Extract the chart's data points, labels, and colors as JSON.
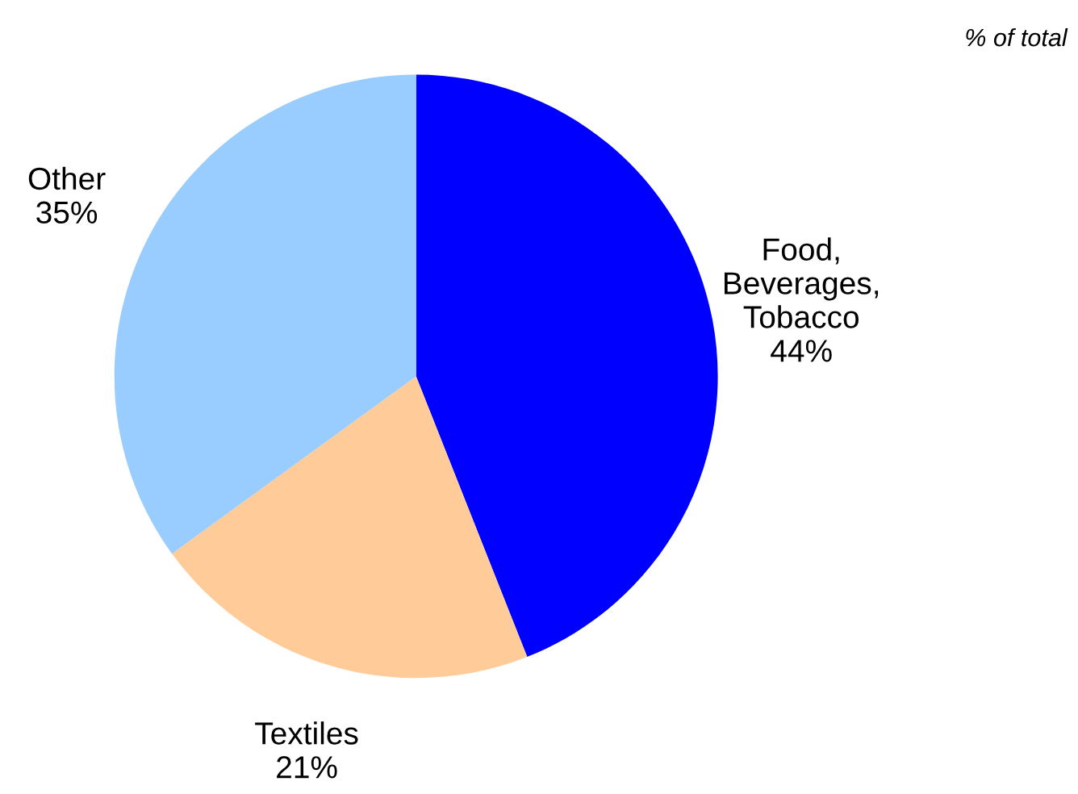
{
  "chart_data": {
    "type": "pie",
    "categories": [
      "Food,\nBeverages,\nTobacco",
      "Textiles",
      "Other"
    ],
    "values": [
      44,
      21,
      35
    ],
    "value_labels": [
      "44%",
      "21%",
      "35%"
    ],
    "colors": [
      "#0000ff",
      "#ffcc99",
      "#99ccff"
    ],
    "annotations": [
      "% of total"
    ],
    "legend": false
  }
}
